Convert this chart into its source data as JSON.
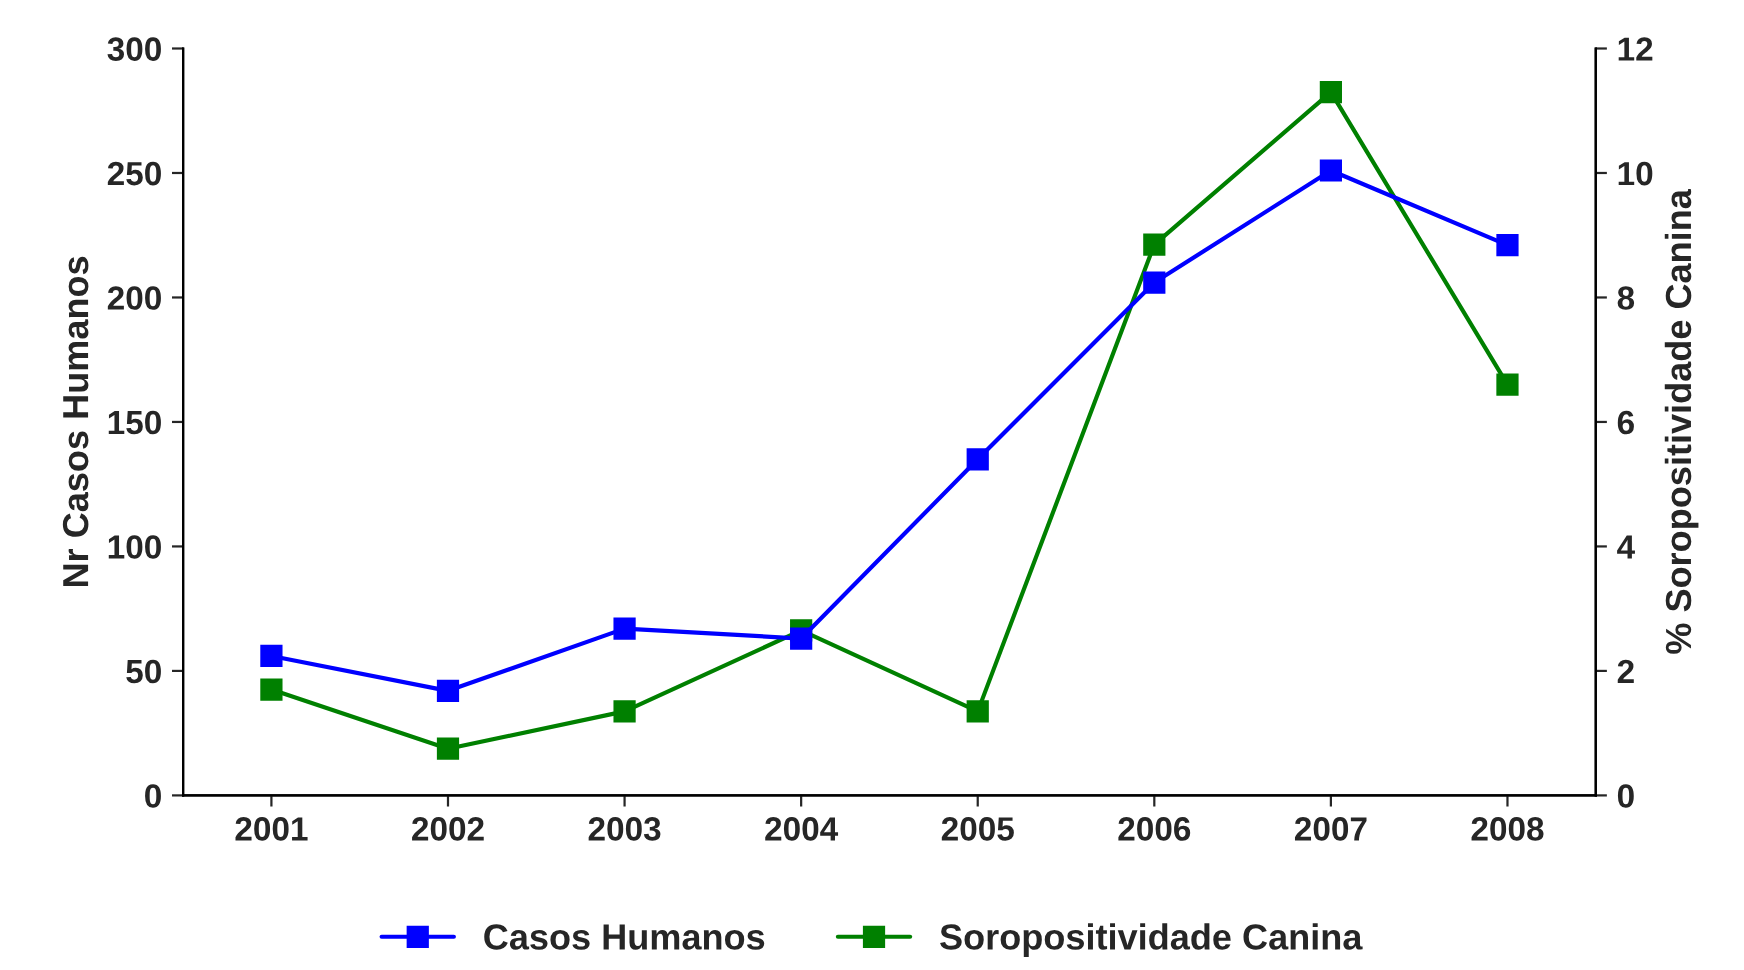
{
  "chart_data": {
    "type": "line",
    "categories": [
      "2001",
      "2002",
      "2003",
      "2004",
      "2005",
      "2006",
      "2007",
      "2008"
    ],
    "ylabel": "Nr Casos Humanos",
    "y2label": "% Soropositividade Canina",
    "series": [
      {
        "name": "Casos Humanos",
        "color": "#0000ff",
        "values": [
          56,
          42,
          67,
          63,
          135,
          206,
          251,
          221
        ]
      },
      {
        "name": "Soropositividade Canina",
        "color": "#008000",
        "axis": "y2",
        "values": [
          1.7,
          0.75,
          1.35,
          2.65,
          1.35,
          8.85,
          11.3,
          6.6
        ]
      }
    ],
    "ylim": [
      0,
      300
    ],
    "yticks": [
      0,
      50,
      100,
      150,
      200,
      250,
      300
    ],
    "y2lim": [
      0,
      12
    ],
    "y2ticks": [
      0,
      2,
      4,
      6,
      8,
      10,
      12
    ],
    "marker": "square",
    "legend": "bottom",
    "grid": false
  }
}
